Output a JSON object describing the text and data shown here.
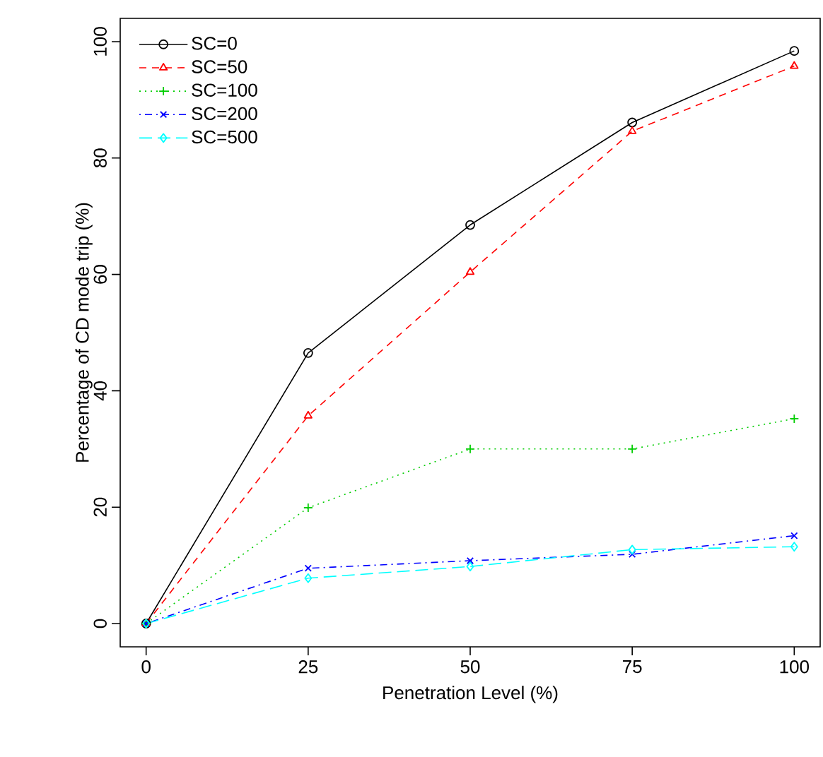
{
  "chart_data": {
    "type": "line",
    "xlabel": "Penetration Level (%)",
    "ylabel": "Percentage of CD mode trip (%)",
    "x": [
      0,
      25,
      50,
      75,
      100
    ],
    "series": [
      {
        "name": "SC=0",
        "color": "#000000",
        "marker": "circle",
        "line_style": "solid",
        "values": [
          0,
          46.5,
          68.5,
          86.1,
          98.4
        ]
      },
      {
        "name": "SC=50",
        "color": "#ff0000",
        "marker": "triangle",
        "line_style": "dashed",
        "values": [
          0,
          35.7,
          60.4,
          84.6,
          95.8
        ]
      },
      {
        "name": "SC=100",
        "color": "#00cd00",
        "marker": "plus",
        "line_style": "dotted",
        "values": [
          0,
          19.9,
          30,
          30,
          35.2
        ]
      },
      {
        "name": "SC=200",
        "color": "#0000ff",
        "marker": "cross",
        "line_style": "dashdot",
        "values": [
          0,
          9.5,
          10.8,
          11.9,
          15.1
        ]
      },
      {
        "name": "SC=500",
        "color": "#00ffff",
        "marker": "diamond",
        "line_style": "longdash",
        "values": [
          0,
          7.8,
          9.8,
          12.7,
          13.2
        ]
      }
    ],
    "xlim": [
      -4,
      104
    ],
    "ylim": [
      -4,
      104
    ],
    "xticks": [
      0,
      25,
      50,
      75,
      100
    ],
    "yticks": [
      0,
      20,
      40,
      60,
      80,
      100
    ],
    "grid": false,
    "legend": "top left"
  }
}
